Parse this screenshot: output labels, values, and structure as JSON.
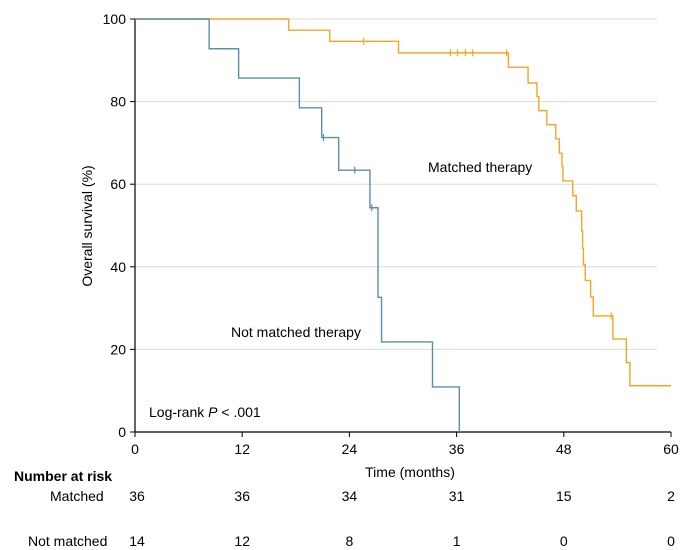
{
  "chart_data": {
    "type": "line",
    "subtype": "kaplan-meier",
    "xlabel": "Time (months)",
    "ylabel": "Overall survival (%)",
    "xlim": [
      0,
      60
    ],
    "ylim": [
      0,
      100
    ],
    "xticks": [
      0,
      12,
      24,
      36,
      48,
      60
    ],
    "yticks": [
      0,
      20,
      40,
      60,
      80,
      100
    ],
    "grid": "horizontal",
    "annotations": {
      "pvalue_prefix": "Log-rank ",
      "pvalue_p": "P",
      "pvalue_suffix": " < .001"
    },
    "series": [
      {
        "name": "Matched therapy",
        "color": "#F5A623",
        "steps": [
          [
            0,
            100
          ],
          [
            17.2,
            100
          ],
          [
            17.2,
            97.3
          ],
          [
            21.8,
            97.3
          ],
          [
            21.8,
            94.6
          ],
          [
            29.5,
            94.6
          ],
          [
            29.5,
            91.8
          ],
          [
            41.8,
            91.8
          ],
          [
            41.8,
            88.3
          ],
          [
            44,
            88.3
          ],
          [
            44,
            84.5
          ],
          [
            45,
            84.5
          ],
          [
            45,
            81.2
          ],
          [
            45.2,
            81.2
          ],
          [
            45.2,
            77.8
          ],
          [
            46.1,
            77.8
          ],
          [
            46.1,
            74.4
          ],
          [
            47.1,
            74.4
          ],
          [
            47.1,
            71
          ],
          [
            47.5,
            71
          ],
          [
            47.5,
            67.5
          ],
          [
            47.8,
            67.5
          ],
          [
            47.8,
            64.3
          ],
          [
            47.9,
            64.3
          ],
          [
            47.9,
            60.8
          ],
          [
            49,
            60.8
          ],
          [
            49,
            57.2
          ],
          [
            49.4,
            57.2
          ],
          [
            49.4,
            53.5
          ],
          [
            50,
            53.5
          ],
          [
            50,
            48.7
          ],
          [
            50.1,
            48.7
          ],
          [
            50.1,
            44.5
          ],
          [
            50.2,
            44.5
          ],
          [
            50.2,
            40.5
          ],
          [
            50.4,
            40.5
          ],
          [
            50.4,
            36.7
          ],
          [
            51,
            36.7
          ],
          [
            51,
            32.7
          ],
          [
            51.3,
            32.7
          ],
          [
            51.3,
            28.1
          ],
          [
            53.5,
            28.1
          ],
          [
            53.5,
            22.5
          ],
          [
            55,
            22.5
          ],
          [
            55,
            16.8
          ],
          [
            55.4,
            16.8
          ],
          [
            55.4,
            11.2
          ],
          [
            60,
            11.2
          ]
        ],
        "censor_x": [
          25.6,
          35.3,
          36.1,
          37,
          37.8,
          41.6,
          53.3
        ]
      },
      {
        "name": "Not matched therapy",
        "color": "#5B8FA8",
        "steps": [
          [
            0,
            100
          ],
          [
            8.3,
            100
          ],
          [
            8.3,
            92.8
          ],
          [
            11.6,
            92.8
          ],
          [
            11.6,
            85.7
          ],
          [
            18.4,
            85.7
          ],
          [
            18.4,
            78.5
          ],
          [
            20.9,
            78.5
          ],
          [
            20.9,
            71.3
          ],
          [
            22.8,
            71.3
          ],
          [
            22.8,
            63.4
          ],
          [
            26.3,
            63.4
          ],
          [
            26.3,
            54.3
          ],
          [
            27.2,
            54.3
          ],
          [
            27.2,
            32.6
          ],
          [
            27.6,
            32.6
          ],
          [
            27.6,
            21.8
          ],
          [
            33.3,
            21.8
          ],
          [
            33.3,
            10.9
          ],
          [
            36.3,
            10.9
          ],
          [
            36.3,
            0
          ]
        ],
        "censor_x": [
          21.1,
          24.6,
          26.5
        ]
      }
    ],
    "risk_table": {
      "title": "Number at risk",
      "rows": [
        {
          "label": "Matched",
          "counts": [
            "36",
            "36",
            "34",
            "31",
            "15",
            "2"
          ]
        },
        {
          "label": "Not matched",
          "counts": [
            "14",
            "12",
            "8",
            "1",
            "0",
            "0"
          ]
        }
      ]
    }
  }
}
